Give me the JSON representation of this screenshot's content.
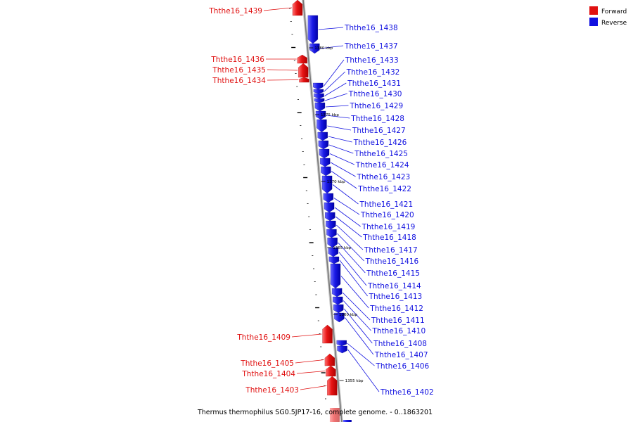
{
  "colors": {
    "forward": "#e01010",
    "reverse": "#1010e0",
    "backbone": "#9a9a9a"
  },
  "legend": {
    "forward_label": "Forward",
    "reverse_label": "Reverse"
  },
  "caption": "Thermus thermophilus SG0.5JP17-16, complete genome. - 0..1863201",
  "kbp_marks": [
    "1380 kbp",
    "1375 kbp",
    "1370 kbp",
    "1365 kbp",
    "1360 kbp",
    "1355 kbp"
  ],
  "forward_genes": [
    "Ththe16_1439",
    "Ththe16_1436",
    "Ththe16_1435",
    "Ththe16_1434",
    "Ththe16_1409",
    "Ththe16_1405",
    "Ththe16_1404",
    "Ththe16_1403"
  ],
  "reverse_genes": [
    "Ththe16_1438",
    "Ththe16_1437",
    "Ththe16_1433",
    "Ththe16_1432",
    "Ththe16_1431",
    "Ththe16_1430",
    "Ththe16_1429",
    "Ththe16_1428",
    "Ththe16_1427",
    "Ththe16_1426",
    "Ththe16_1425",
    "Ththe16_1424",
    "Ththe16_1423",
    "Ththe16_1422",
    "Ththe16_1421",
    "Ththe16_1420",
    "Ththe16_1419",
    "Ththe16_1418",
    "Ththe16_1417",
    "Ththe16_1416",
    "Ththe16_1415",
    "Ththe16_1414",
    "Ththe16_1413",
    "Ththe16_1412",
    "Ththe16_1411",
    "Ththe16_1410",
    "Ththe16_1408",
    "Ththe16_1407",
    "Ththe16_1406",
    "Ththe16_1402"
  ]
}
